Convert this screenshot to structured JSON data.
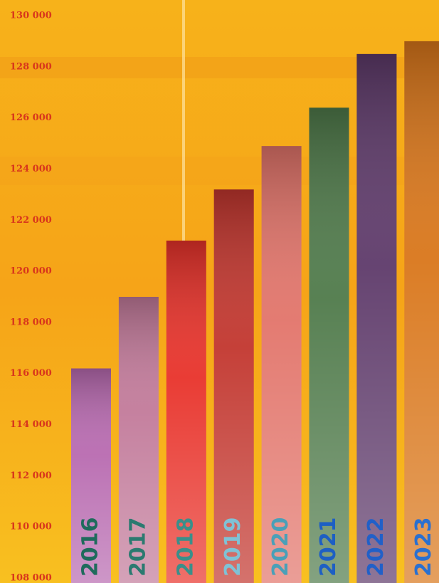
{
  "chart_data": {
    "type": "bar",
    "categories": [
      "2016",
      "2017",
      "2018",
      "2019",
      "2020",
      "2021",
      "2022",
      "2023"
    ],
    "values": [
      116200,
      119000,
      121200,
      123200,
      124900,
      126400,
      128500,
      129000
    ],
    "colors": [
      "#b86ab0",
      "#c27a9a",
      "#e8322a",
      "#c2362e",
      "#e2746a",
      "#4f7a4a",
      "#5e3a6a",
      "#d9761a"
    ],
    "label_colors": [
      "#1f6b5c",
      "#2b7a70",
      "#3a8f8a",
      "#7fc2d6",
      "#4aa0b8",
      "#1d5fc4",
      "#2160c8",
      "#2a70d0"
    ],
    "ylim": [
      108000,
      130000
    ],
    "yticks": [
      {
        "value": 108000,
        "label": "108 000"
      },
      {
        "value": 110000,
        "label": "110 000"
      },
      {
        "value": 112000,
        "label": "112 000"
      },
      {
        "value": 114000,
        "label": "114 000"
      },
      {
        "value": 116000,
        "label": "116 000"
      },
      {
        "value": 118000,
        "label": "118 000"
      },
      {
        "value": 120000,
        "label": "120 000"
      },
      {
        "value": 122000,
        "label": "122 000"
      },
      {
        "value": 124000,
        "label": "124 000"
      },
      {
        "value": 126000,
        "label": "126 000"
      },
      {
        "value": 128000,
        "label": "128 000"
      },
      {
        "value": 130000,
        "label": "130 000"
      }
    ],
    "tick_color": "#d8361c"
  }
}
